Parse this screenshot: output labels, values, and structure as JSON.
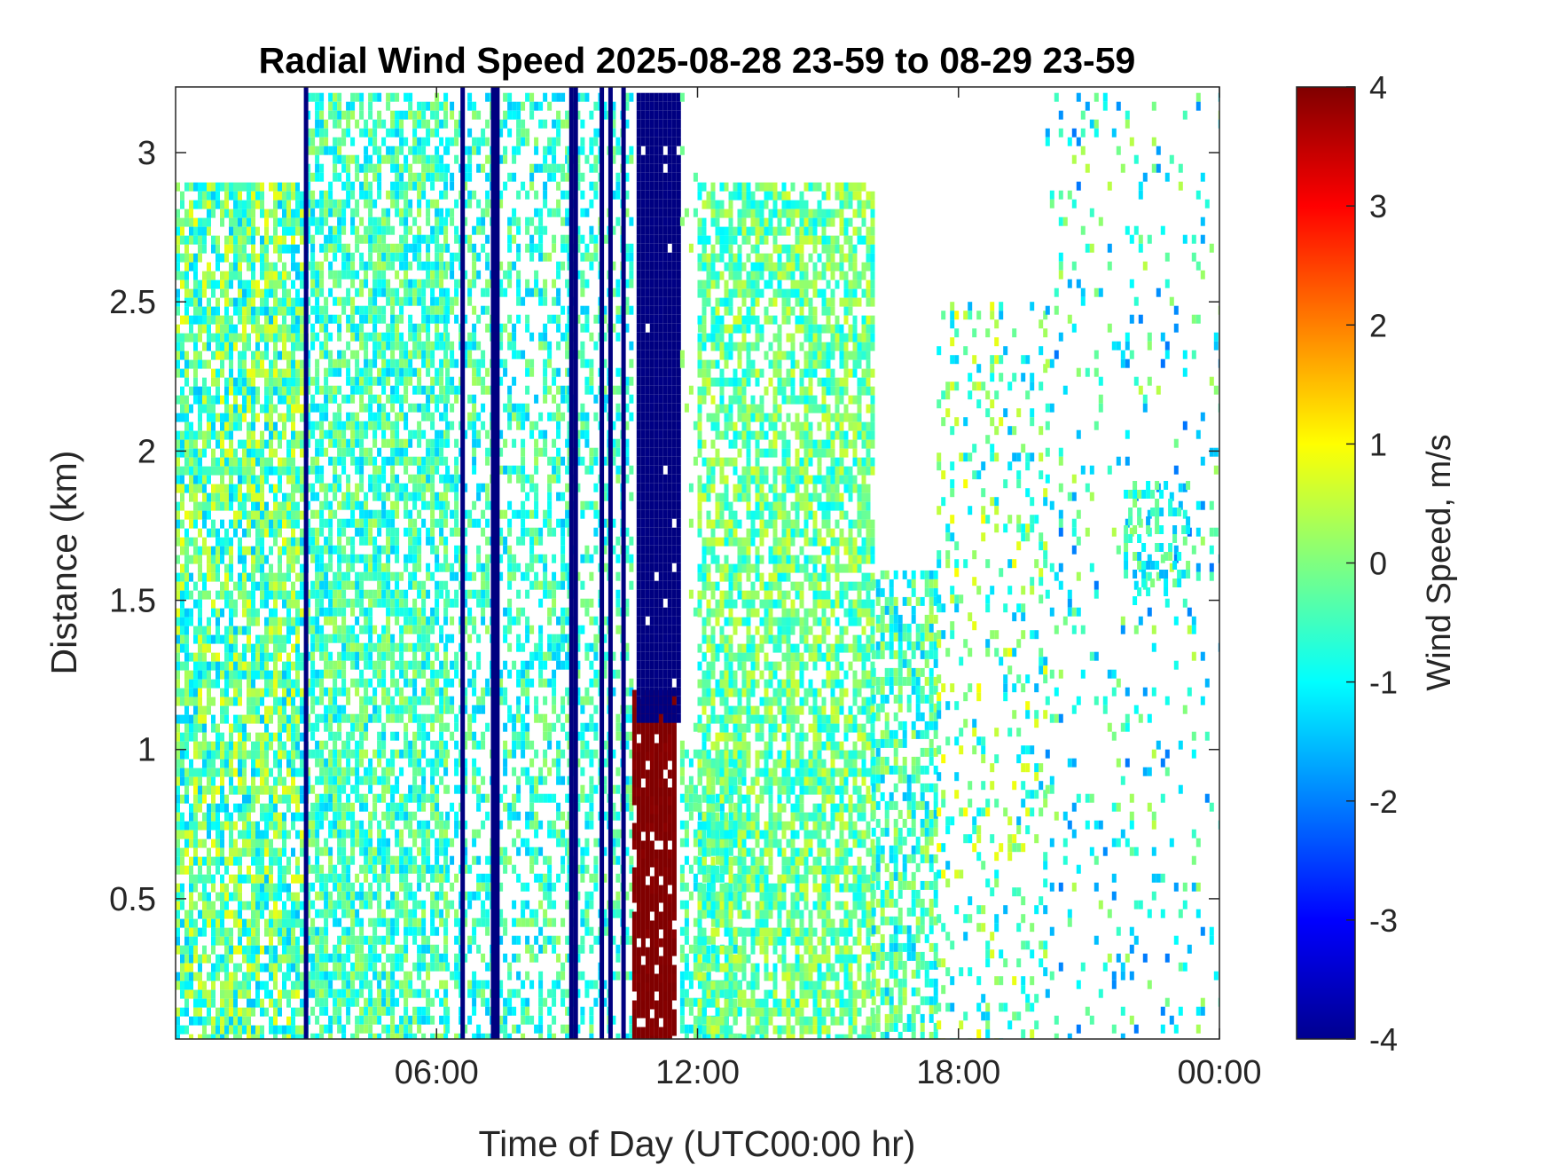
{
  "chart_data": {
    "type": "heatmap",
    "title": "Radial Wind Speed 2025-08-28 23-59 to 08-29 23-59",
    "xlabel": "Time of Day (UTC00:00 hr)",
    "ylabel": "Distance (km)",
    "xlim": [
      0,
      24
    ],
    "ylim": [
      0.03,
      3.22
    ],
    "x_ticks": [
      {
        "value": 6,
        "label": "06:00"
      },
      {
        "value": 12,
        "label": "12:00"
      },
      {
        "value": 18,
        "label": "18:00"
      },
      {
        "value": 24,
        "label": "00:00"
      }
    ],
    "y_ticks": [
      {
        "value": 0.5,
        "label": "0.5"
      },
      {
        "value": 1,
        "label": "1"
      },
      {
        "value": 1.5,
        "label": "1.5"
      },
      {
        "value": 2,
        "label": "2"
      },
      {
        "value": 2.5,
        "label": "2.5"
      },
      {
        "value": 3,
        "label": "3"
      }
    ],
    "colorbar": {
      "label": "Wind Speed, m/s",
      "colormap": "jet",
      "clim": [
        -4,
        4
      ],
      "ticks": [
        {
          "value": 4,
          "label": "4"
        },
        {
          "value": 3,
          "label": "3"
        },
        {
          "value": 2,
          "label": "2"
        },
        {
          "value": 1,
          "label": "1"
        },
        {
          "value": 0,
          "label": "0"
        },
        {
          "value": -1,
          "label": "-1"
        },
        {
          "value": -2,
          "label": "-2"
        },
        {
          "value": -3,
          "label": "-3"
        },
        {
          "value": -4,
          "label": "-4"
        }
      ]
    },
    "grid": false,
    "regions": [
      {
        "t0": 0.0,
        "t1": 3.0,
        "d0": 0.03,
        "d1": 2.9,
        "value": -0.3,
        "spread": 1.2,
        "density": 0.75
      },
      {
        "t0": 3.0,
        "t1": 6.2,
        "d0": 0.03,
        "d1": 3.2,
        "value": -0.5,
        "spread": 0.9,
        "density": 0.7
      },
      {
        "t0": 6.2,
        "t1": 9.0,
        "d0": 0.03,
        "d1": 3.2,
        "value": -0.6,
        "spread": 0.9,
        "density": 0.45
      },
      {
        "t0": 9.0,
        "t1": 10.5,
        "d0": 0.03,
        "d1": 3.2,
        "value": -0.6,
        "spread": 0.8,
        "density": 0.4
      },
      {
        "t0": 10.5,
        "t1": 11.5,
        "d0": 0.03,
        "d1": 1.2,
        "value": 4.0,
        "spread": 0.1,
        "density": 0.9
      },
      {
        "t0": 10.6,
        "t1": 11.6,
        "d0": 1.1,
        "d1": 3.2,
        "value": -4.0,
        "spread": 0.05,
        "density": 0.98
      },
      {
        "t0": 11.6,
        "t1": 13.0,
        "d0": 0.03,
        "d1": 1.0,
        "value": -0.5,
        "spread": 0.8,
        "density": 0.6
      },
      {
        "t0": 11.6,
        "t1": 12.2,
        "d0": 1.0,
        "d1": 3.2,
        "value": 0.0,
        "spread": 0.5,
        "density": 0.05
      },
      {
        "t0": 12.0,
        "t1": 16.0,
        "d0": 0.03,
        "d1": 2.9,
        "value": -0.2,
        "spread": 0.9,
        "density": 0.7
      },
      {
        "t0": 16.0,
        "t1": 17.5,
        "d0": 0.03,
        "d1": 1.6,
        "value": -0.5,
        "spread": 1.0,
        "density": 0.6
      },
      {
        "t0": 17.5,
        "t1": 20.0,
        "d0": 0.03,
        "d1": 2.5,
        "value": -0.3,
        "spread": 1.3,
        "density": 0.2
      },
      {
        "t0": 20.0,
        "t1": 24.0,
        "d0": 0.03,
        "d1": 3.2,
        "value": -0.8,
        "spread": 1.3,
        "density": 0.1
      },
      {
        "t0": 21.8,
        "t1": 23.3,
        "d0": 1.5,
        "d1": 1.9,
        "value": -0.8,
        "spread": 0.9,
        "density": 0.35
      }
    ],
    "stripes": [
      {
        "t": 3.0,
        "value": -4.0
      },
      {
        "t": 6.6,
        "value": -4.0
      },
      {
        "t": 7.3,
        "value": -4.0
      },
      {
        "t": 7.4,
        "value": -4.0
      },
      {
        "t": 9.1,
        "value": -4.0
      },
      {
        "t": 9.2,
        "value": -4.0
      },
      {
        "t": 9.8,
        "value": -4.0
      },
      {
        "t": 10.0,
        "value": -4.0
      },
      {
        "t": 10.3,
        "value": -4.0
      }
    ]
  }
}
